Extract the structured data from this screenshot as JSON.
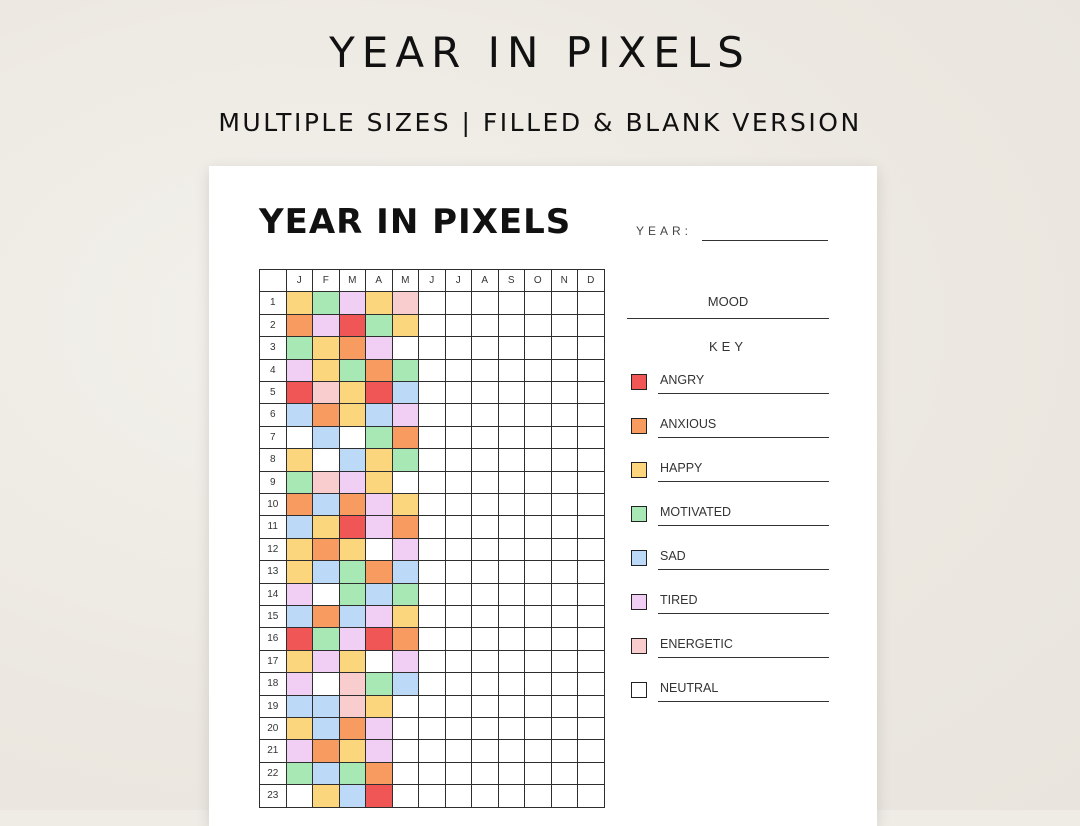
{
  "header": {
    "title": "YEAR IN PIXELS",
    "subtitle": "MULTIPLE SIZES | FILLED & BLANK VERSION"
  },
  "sheet": {
    "title": "YEAR IN PIXELS",
    "year_label": "YEAR:",
    "months": [
      "J",
      "F",
      "M",
      "A",
      "M",
      "J",
      "J",
      "A",
      "S",
      "O",
      "N",
      "D"
    ],
    "days": [
      "1",
      "2",
      "3",
      "4",
      "5",
      "6",
      "7",
      "8",
      "9",
      "10",
      "11",
      "12",
      "13",
      "14",
      "15",
      "16",
      "17",
      "18",
      "19",
      "20",
      "21",
      "22",
      "23"
    ],
    "cells": [
      [
        "happy",
        "motivated",
        "tired",
        "happy",
        "energetic",
        "",
        "",
        "",
        "",
        "",
        "",
        ""
      ],
      [
        "anxious",
        "tired",
        "angry",
        "motivated",
        "happy",
        "",
        "",
        "",
        "",
        "",
        "",
        ""
      ],
      [
        "motivated",
        "happy",
        "anxious",
        "tired",
        "neutral",
        "",
        "",
        "",
        "",
        "",
        "",
        ""
      ],
      [
        "tired",
        "happy",
        "motivated",
        "anxious",
        "motivated",
        "",
        "",
        "",
        "",
        "",
        "",
        ""
      ],
      [
        "angry",
        "energetic",
        "happy",
        "angry",
        "sad",
        "",
        "",
        "",
        "",
        "",
        "",
        ""
      ],
      [
        "sad",
        "anxious",
        "happy",
        "sad",
        "tired",
        "",
        "",
        "",
        "",
        "",
        "",
        ""
      ],
      [
        "neutral",
        "sad",
        "neutral",
        "motivated",
        "anxious",
        "",
        "",
        "",
        "",
        "",
        "",
        ""
      ],
      [
        "happy",
        "neutral",
        "sad",
        "happy",
        "motivated",
        "",
        "",
        "",
        "",
        "",
        "",
        ""
      ],
      [
        "motivated",
        "energetic",
        "tired",
        "happy",
        "neutral",
        "",
        "",
        "",
        "",
        "",
        "",
        ""
      ],
      [
        "anxious",
        "sad",
        "anxious",
        "tired",
        "happy",
        "",
        "",
        "",
        "",
        "",
        "",
        ""
      ],
      [
        "sad",
        "happy",
        "angry",
        "tired",
        "anxious",
        "",
        "",
        "",
        "",
        "",
        "",
        ""
      ],
      [
        "happy",
        "anxious",
        "happy",
        "neutral",
        "tired",
        "",
        "",
        "",
        "",
        "",
        "",
        ""
      ],
      [
        "happy",
        "sad",
        "motivated",
        "anxious",
        "sad",
        "",
        "",
        "",
        "",
        "",
        "",
        ""
      ],
      [
        "tired",
        "neutral",
        "motivated",
        "sad",
        "motivated",
        "",
        "",
        "",
        "",
        "",
        "",
        ""
      ],
      [
        "sad",
        "anxious",
        "sad",
        "tired",
        "happy",
        "",
        "",
        "",
        "",
        "",
        "",
        ""
      ],
      [
        "angry",
        "motivated",
        "tired",
        "angry",
        "anxious",
        "",
        "",
        "",
        "",
        "",
        "",
        ""
      ],
      [
        "happy",
        "tired",
        "happy",
        "neutral",
        "tired",
        "",
        "",
        "",
        "",
        "",
        "",
        ""
      ],
      [
        "tired",
        "neutral",
        "energetic",
        "motivated",
        "sad",
        "",
        "",
        "",
        "",
        "",
        "",
        ""
      ],
      [
        "sad",
        "sad",
        "energetic",
        "happy",
        "neutral",
        "",
        "",
        "",
        "",
        "",
        "",
        ""
      ],
      [
        "happy",
        "sad",
        "anxious",
        "tired",
        "neutral",
        "",
        "",
        "",
        "",
        "",
        "",
        ""
      ],
      [
        "tired",
        "anxious",
        "happy",
        "tired",
        "neutral",
        "",
        "",
        "",
        "",
        "",
        "",
        ""
      ],
      [
        "motivated",
        "sad",
        "motivated",
        "anxious",
        "neutral",
        "",
        "",
        "",
        "",
        "",
        "",
        ""
      ],
      [
        "neutral",
        "happy",
        "sad",
        "angry",
        "neutral",
        "",
        "",
        "",
        "",
        "",
        "",
        ""
      ]
    ],
    "mood_title": "MOOD",
    "key_title": "KEY",
    "key": [
      {
        "id": "angry",
        "label": "ANGRY",
        "color": "#f05656"
      },
      {
        "id": "anxious",
        "label": "ANXIOUS",
        "color": "#f79b61"
      },
      {
        "id": "happy",
        "label": "HAPPY",
        "color": "#fbd67c"
      },
      {
        "id": "motivated",
        "label": "MOTIVATED",
        "color": "#a7e8b5"
      },
      {
        "id": "sad",
        "label": "SAD",
        "color": "#bcd9f7"
      },
      {
        "id": "tired",
        "label": "TIRED",
        "color": "#f1cff5"
      },
      {
        "id": "energetic",
        "label": "ENERGETIC",
        "color": "#f9cdcd"
      },
      {
        "id": "neutral",
        "label": "NEUTRAL",
        "color": "#ffffff"
      }
    ]
  }
}
